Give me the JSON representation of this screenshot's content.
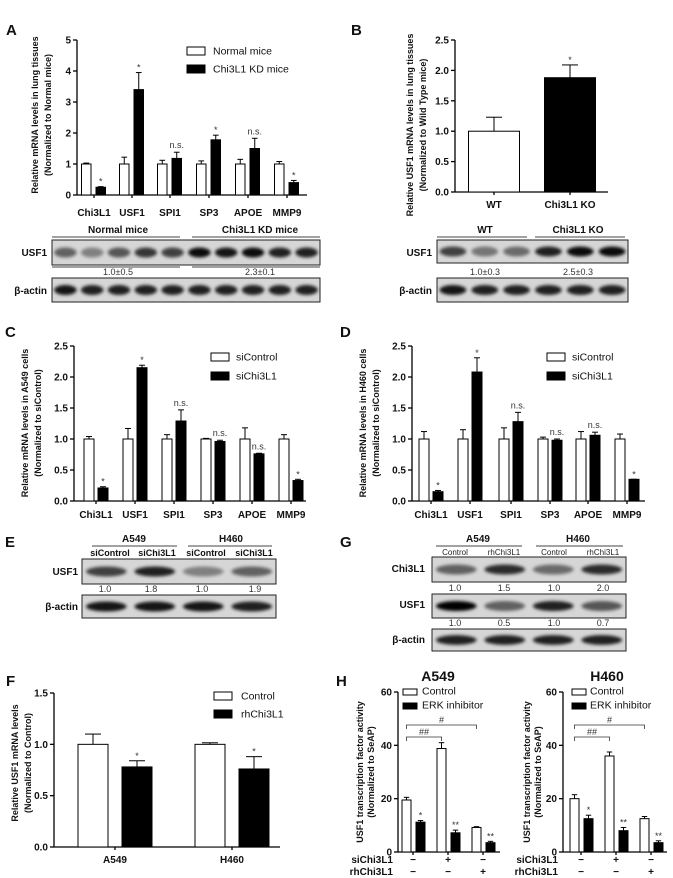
{
  "chart_data": [
    {
      "panel": "A",
      "type": "bar",
      "ylabel": [
        "Relative mRNA levels in lung tissues",
        "(Normalized to Normal mice)"
      ],
      "ylim": [
        0,
        5
      ],
      "yticks": [
        "0",
        "1",
        "2",
        "3",
        "4",
        "5"
      ],
      "categories": [
        "Chi3L1",
        "USF1",
        "SPI1",
        "SP3",
        "APOE",
        "MMP9"
      ],
      "legend": "top-right",
      "series": [
        {
          "name": "Normal mice",
          "fill": "#ffffff",
          "values": [
            1.0,
            1.0,
            1.0,
            1.0,
            1.0,
            1.0
          ],
          "errors": [
            0.03,
            0.22,
            0.12,
            0.1,
            0.15,
            0.08
          ],
          "annotations": [
            "",
            "",
            "",
            "",
            "",
            ""
          ]
        },
        {
          "name": "Chi3L1 KD mice",
          "fill": "#000000",
          "values": [
            0.25,
            3.4,
            1.18,
            1.78,
            1.5,
            0.4
          ],
          "errors": [
            0.02,
            0.55,
            0.2,
            0.15,
            0.33,
            0.07
          ],
          "annotations": [
            "*",
            "*",
            "n.s.",
            "*",
            "n.s.",
            "*"
          ]
        }
      ]
    },
    {
      "panel": "B",
      "type": "bar",
      "ylabel": [
        "Relative USF1 mRNA levels in lung tissues",
        "(Normalized to Wild Type mice)"
      ],
      "ylim": [
        0,
        2.5
      ],
      "yticks": [
        "0.0",
        "0.5",
        "1.0",
        "1.5",
        "2.0",
        "2.5"
      ],
      "categories": [
        "WT",
        "Chi3L1 KO"
      ],
      "series": [
        {
          "colors": [
            "#ffffff",
            "#000000"
          ],
          "values": [
            1.0,
            1.88
          ],
          "errors": [
            0.23,
            0.21
          ],
          "annotations": [
            "",
            "*"
          ]
        }
      ]
    },
    {
      "panel": "C",
      "type": "bar",
      "ylabel": [
        "Relative mRNA levels in A549 cells",
        "(Normalized to siControl)"
      ],
      "ylim": [
        0,
        2.5
      ],
      "yticks": [
        "0.0",
        "0.5",
        "1.0",
        "1.5",
        "2.0",
        "2.5"
      ],
      "categories": [
        "Chi3L1",
        "USF1",
        "SPI1",
        "SP3",
        "APOE",
        "MMP9"
      ],
      "legend": "top-right",
      "series": [
        {
          "name": "siControl",
          "fill": "#ffffff",
          "values": [
            1.0,
            1.0,
            1.0,
            1.0,
            1.0,
            1.0
          ],
          "errors": [
            0.04,
            0.17,
            0.07,
            0.01,
            0.18,
            0.07
          ],
          "annotations": [
            "",
            "",
            "",
            "",
            "",
            ""
          ]
        },
        {
          "name": "siChi3L1",
          "fill": "#000000",
          "values": [
            0.21,
            2.15,
            1.29,
            0.96,
            0.76,
            0.33
          ],
          "errors": [
            0.02,
            0.04,
            0.18,
            0.02,
            0.01,
            0.02
          ],
          "annotations": [
            "*",
            "*",
            "n.s.",
            "n.s.",
            "n.s.",
            "*"
          ]
        }
      ]
    },
    {
      "panel": "D",
      "type": "bar",
      "ylabel": [
        "Relative mRNA levels in H460 cells",
        "(Normalized to siControl)"
      ],
      "ylim": [
        0,
        2.5
      ],
      "yticks": [
        "0.0",
        "0.5",
        "1.0",
        "1.5",
        "2.0",
        "2.5"
      ],
      "categories": [
        "Chi3L1",
        "USF1",
        "SPI1",
        "SP3",
        "APOE",
        "MMP9"
      ],
      "legend": "top-right",
      "series": [
        {
          "name": "siControl",
          "fill": "#ffffff",
          "values": [
            1.0,
            1.0,
            1.0,
            1.0,
            1.0,
            1.0
          ],
          "errors": [
            0.12,
            0.15,
            0.18,
            0.03,
            0.12,
            0.08
          ],
          "annotations": [
            "",
            "",
            "",
            "",
            "",
            ""
          ]
        },
        {
          "name": "siChi3L1",
          "fill": "#000000",
          "values": [
            0.15,
            2.08,
            1.28,
            0.98,
            1.06,
            0.35
          ],
          "errors": [
            0.02,
            0.23,
            0.15,
            0.02,
            0.05,
            0.0
          ],
          "annotations": [
            "*",
            "*",
            "n.s.",
            "n.s.",
            "n.s.",
            "*"
          ]
        }
      ]
    },
    {
      "panel": "F",
      "type": "bar",
      "ylabel": [
        "Relative USF1 mRNA levels",
        "(Normalized to Control)"
      ],
      "ylim": [
        0,
        1.5
      ],
      "yticks": [
        "0.0",
        "0.5",
        "1.0",
        "1.5"
      ],
      "categories": [
        "A549",
        "H460"
      ],
      "legend": "top-right",
      "series": [
        {
          "name": "Control",
          "fill": "#ffffff",
          "values": [
            1.0,
            1.0
          ],
          "errors": [
            0.1,
            0.015
          ],
          "annotations": [
            "",
            ""
          ]
        },
        {
          "name": "rhChi3L1",
          "fill": "#000000",
          "values": [
            0.78,
            0.76
          ],
          "errors": [
            0.06,
            0.12
          ],
          "annotations": [
            "*",
            "*"
          ]
        }
      ]
    },
    {
      "panel": "H",
      "type": "bar",
      "title": "A549",
      "ylabel": [
        "USF1 transcription factor activity",
        "(Normalized to SeAP)"
      ],
      "ylim": [
        0,
        60
      ],
      "yticks": [
        "0",
        "20",
        "40",
        "60"
      ],
      "categories": [
        "",
        "",
        ""
      ],
      "legend": "top-left",
      "conditions": [
        {
          "label": "siChi3L1",
          "values": [
            "−",
            "+",
            "−"
          ]
        },
        {
          "label": "rhChi3L1",
          "values": [
            "−",
            "−",
            "+"
          ]
        }
      ],
      "comparisons": [
        {
          "from": 0,
          "to": 1,
          "label": "##"
        },
        {
          "from": 0,
          "to": 2,
          "label": "#"
        }
      ],
      "series": [
        {
          "name": "Control",
          "fill": "#ffffff",
          "values": [
            19.5,
            38.8,
            9.2
          ],
          "errors": [
            1.0,
            2.2,
            0.3
          ],
          "annotations": [
            "",
            "",
            ""
          ]
        },
        {
          "name": "ERK inhibitor",
          "fill": "#000000",
          "values": [
            11.2,
            7.2,
            3.5
          ],
          "errors": [
            0.6,
            1.0,
            0.5
          ],
          "annotations": [
            "*",
            "**",
            "**"
          ]
        }
      ]
    },
    {
      "type": "bar",
      "title": "H460",
      "ylabel": [
        "USF1 transcription factor activity",
        "(Normalized to SeAP)"
      ],
      "ylim": [
        0,
        60
      ],
      "yticks": [
        "0",
        "20",
        "40",
        "60"
      ],
      "categories": [
        "",
        "",
        ""
      ],
      "legend": "top-left",
      "conditions": [
        {
          "label": "siChi3L1",
          "values": [
            "−",
            "+",
            "−"
          ]
        },
        {
          "label": "rhChi3L1",
          "values": [
            "−",
            "−",
            "+"
          ]
        }
      ],
      "comparisons": [
        {
          "from": 0,
          "to": 1,
          "label": "##"
        },
        {
          "from": 0,
          "to": 2,
          "label": "#"
        }
      ],
      "series": [
        {
          "name": "Control",
          "fill": "#ffffff",
          "values": [
            20.0,
            36.0,
            12.5
          ],
          "errors": [
            1.5,
            1.5,
            0.8
          ],
          "annotations": [
            "",
            "",
            ""
          ]
        },
        {
          "name": "ERK inhibitor",
          "fill": "#000000",
          "values": [
            12.5,
            8.0,
            3.5
          ],
          "errors": [
            1.3,
            1.2,
            0.7
          ],
          "annotations": [
            "*",
            "**",
            "**"
          ]
        }
      ]
    }
  ],
  "blots": {
    "A": {
      "groups": [
        "Normal mice",
        "Chi3L1 KD mice"
      ],
      "rows": [
        {
          "label": "USF1",
          "quant": [
            "1.0±0.5",
            "2.3±0.1"
          ]
        },
        {
          "label": "β-actin"
        }
      ]
    },
    "B": {
      "groups": [
        "WT",
        "Chi3L1 KO"
      ],
      "rows": [
        {
          "label": "USF1",
          "quant": [
            "1.0±0.3",
            "2.5±0.3"
          ]
        },
        {
          "label": "β-actin"
        }
      ]
    },
    "E": {
      "panel": "E",
      "groups": [
        "A549",
        "H460"
      ],
      "lanes": [
        "siControl",
        "siChi3L1",
        "siControl",
        "siChi3L1"
      ],
      "rows": [
        {
          "label": "USF1",
          "quant": [
            "1.0",
            "1.8",
            "1.0",
            "1.9"
          ]
        },
        {
          "label": "β-actin"
        }
      ]
    },
    "G": {
      "panel": "G",
      "groups": [
        "A549",
        "H460"
      ],
      "lanes": [
        "Control",
        "rhChi3L1",
        "Control",
        "rhChi3L1"
      ],
      "rows": [
        {
          "label": "Chi3L1",
          "quant": [
            "1.0",
            "1.5",
            "1.0",
            "2.0"
          ]
        },
        {
          "label": "USF1",
          "quant": [
            "1.0",
            "0.5",
            "1.0",
            "0.7"
          ]
        },
        {
          "label": "β-actin"
        }
      ]
    }
  },
  "panel_labels": [
    "A",
    "B",
    "C",
    "D",
    "E",
    "F",
    "G",
    "H"
  ]
}
